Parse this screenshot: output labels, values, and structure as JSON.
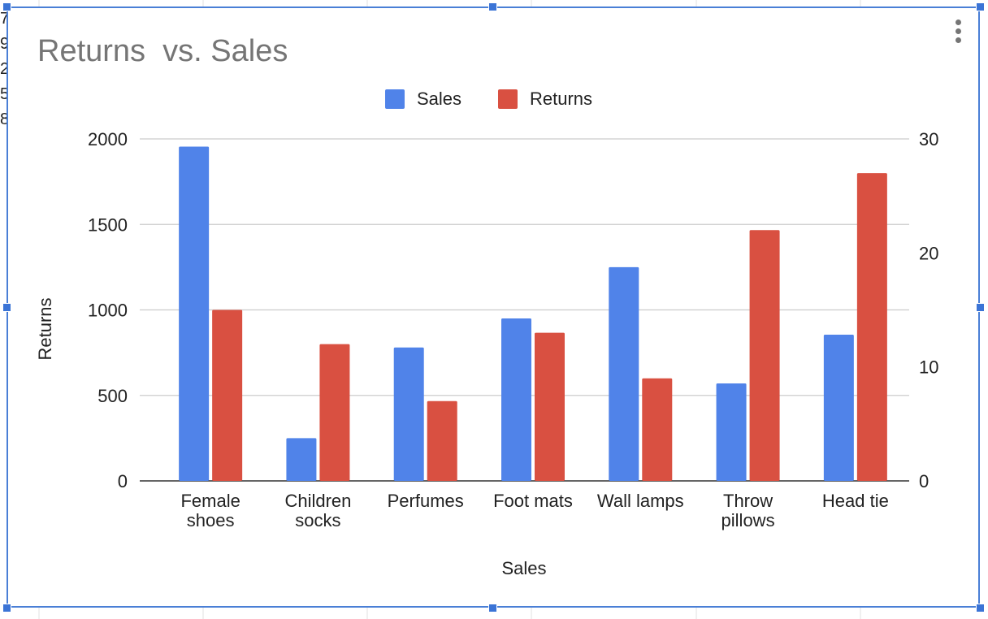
{
  "chart_data": {
    "type": "bar",
    "title": "Returns  vs. Sales",
    "xlabel": "Sales",
    "ylabel": "Returns",
    "categories": [
      "Female shoes",
      "Children socks",
      "Perfumes",
      "Foot mats",
      "Wall lamps",
      "Throw pillows",
      "Head tie"
    ],
    "series": [
      {
        "name": "Sales",
        "axis": "left",
        "color": "#5083e9",
        "values": [
          1955,
          250,
          780,
          950,
          1250,
          570,
          855
        ]
      },
      {
        "name": "Returns",
        "axis": "right",
        "color": "#d95041",
        "values": [
          15,
          12,
          7,
          13,
          9,
          22,
          27
        ]
      }
    ],
    "ylim_left": [
      0,
      2000
    ],
    "yticks_left": [
      "0",
      "500",
      "1000",
      "1500",
      "2000"
    ],
    "ylim_right": [
      0,
      30
    ],
    "yticks_right": [
      "0",
      "10",
      "20",
      "30"
    ],
    "grid": true,
    "legend_position": "top"
  }
}
